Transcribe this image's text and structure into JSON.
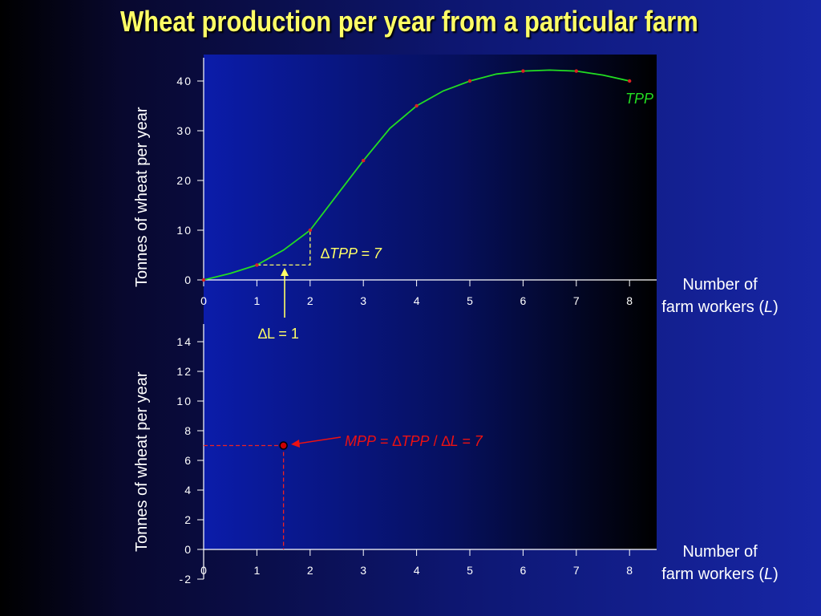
{
  "slide": {
    "title": "Wheat production per year from a particular farm"
  },
  "chart_data": [
    {
      "type": "line",
      "ylabel": "Tonnes of wheat  per year",
      "xlabel_line1": "Number of",
      "xlabel_line2a": "farm workers (",
      "xlabel_line2b": "L",
      "xlabel_line2c": ")",
      "x_ticks": [
        0,
        1,
        2,
        3,
        4,
        5,
        6,
        7,
        8
      ],
      "y_ticks": [
        0,
        10,
        20,
        30,
        40
      ],
      "xlim": [
        0,
        8.5
      ],
      "ylim": [
        0,
        45
      ],
      "series": [
        {
          "name": "TPP",
          "color": "#22dd22",
          "curve": [
            [
              0,
              0
            ],
            [
              0.5,
              1.3
            ],
            [
              1,
              3
            ],
            [
              1.5,
              6
            ],
            [
              2,
              10
            ],
            [
              2.5,
              17
            ],
            [
              3,
              24
            ],
            [
              3.5,
              30.5
            ],
            [
              4,
              35
            ],
            [
              4.5,
              38
            ],
            [
              5,
              40
            ],
            [
              5.5,
              41.4
            ],
            [
              6,
              42
            ],
            [
              6.5,
              42.2
            ],
            [
              7,
              42
            ],
            [
              7.5,
              41.2
            ],
            [
              8,
              40
            ]
          ],
          "points": [
            [
              0,
              0
            ],
            [
              1,
              3
            ],
            [
              2,
              10
            ],
            [
              3,
              24
            ],
            [
              4,
              35
            ],
            [
              5,
              40
            ],
            [
              6,
              42
            ],
            [
              7,
              42
            ],
            [
              8,
              40
            ]
          ],
          "point_color": "#dd2222"
        }
      ],
      "annotations": {
        "delta_tpp": {
          "text": "TPP = 7",
          "symbol": "∆",
          "from": [
            1,
            3
          ],
          "to": [
            2,
            10
          ],
          "color": "#ffff66"
        },
        "delta_l": {
          "text": "L = 1",
          "symbol": "∆",
          "color": "#ffff66"
        }
      },
      "grid": false
    },
    {
      "type": "scatter",
      "ylabel": "Tonnes of wheat  per year",
      "xlabel_line1": "Number of",
      "xlabel_line2a": "farm workers (",
      "xlabel_line2b": "L",
      "xlabel_line2c": ")",
      "x_ticks": [
        0,
        1,
        2,
        3,
        4,
        5,
        6,
        7,
        8
      ],
      "y_ticks": [
        -2,
        0,
        2,
        4,
        6,
        8,
        10,
        12,
        14
      ],
      "xlim": [
        0,
        8.5
      ],
      "ylim": [
        -2,
        15
      ],
      "series": [
        {
          "name": "MPP",
          "points": [
            [
              1.5,
              7
            ]
          ],
          "color": "#cc0000"
        }
      ],
      "annotations": {
        "mpp": {
          "label_a": "MPP",
          "label_b": " = ",
          "symbol": "∆",
          "label_c": "TPP",
          "label_d": " / ",
          "label_e": "L = 7",
          "color": "#ee1111"
        }
      },
      "grid": false
    }
  ]
}
